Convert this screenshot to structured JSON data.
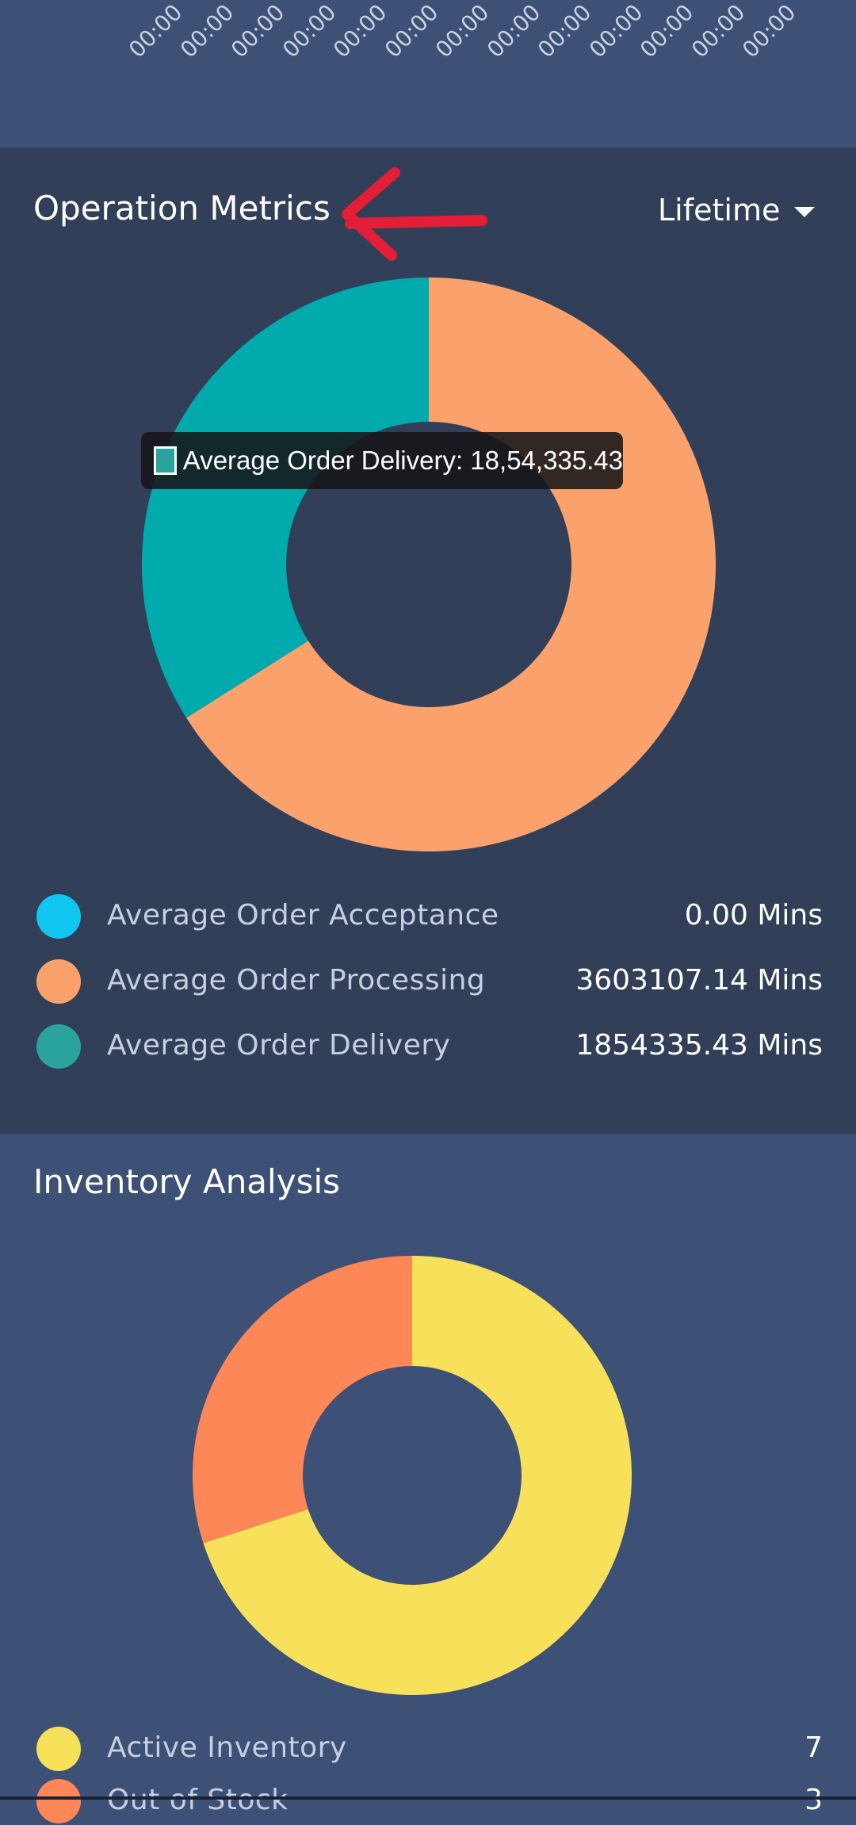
{
  "time_axis": {
    "ticks": [
      "00:00",
      "00:00",
      "00:00",
      "00:00",
      "00:00",
      "00:00",
      "00:00",
      "00:00",
      "00:00",
      "00:00",
      "00:00",
      "00:00",
      "00:00"
    ]
  },
  "operation_metrics": {
    "title": "Operation Metrics",
    "period": "Lifetime",
    "tooltip": "Average Order Delivery: 18,54,335.43",
    "legend": [
      {
        "label": "Average Order Acceptance",
        "value": "0.00 Mins",
        "color": "#11c7f2"
      },
      {
        "label": "Average Order Processing",
        "value": "3603107.14 Mins",
        "color": "#fba26c"
      },
      {
        "label": "Average Order Delivery",
        "value": "1854335.43 Mins",
        "color": "#2aa39c"
      }
    ]
  },
  "inventory_analysis": {
    "title": "Inventory Analysis",
    "legend": [
      {
        "label": "Active Inventory",
        "value": "7",
        "color": "#f8e15a"
      },
      {
        "label": "Out of Stock",
        "value": "3",
        "color": "#fe8757"
      }
    ]
  },
  "chart_data": [
    {
      "type": "pie",
      "title": "Operation Metrics",
      "categories": [
        "Average Order Acceptance",
        "Average Order Processing",
        "Average Order Delivery"
      ],
      "values": [
        0.0,
        3603107.14,
        1854335.43
      ],
      "colors": [
        "#11c7f2",
        "#fba26c",
        "#01aaad"
      ],
      "donut": true
    },
    {
      "type": "pie",
      "title": "Inventory Analysis",
      "categories": [
        "Active Inventory",
        "Out of Stock"
      ],
      "values": [
        7,
        3
      ],
      "colors": [
        "#f8e15a",
        "#fe8757"
      ],
      "donut": true
    }
  ]
}
